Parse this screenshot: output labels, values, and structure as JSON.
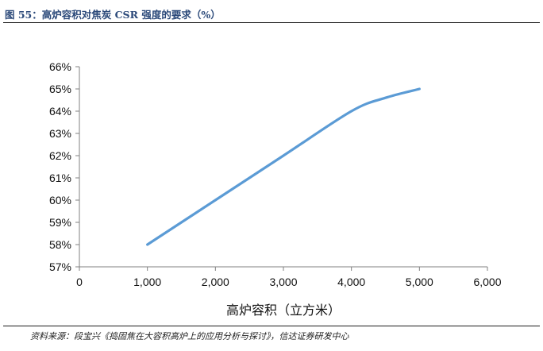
{
  "figure": {
    "title": "图 55：高炉容积对焦炭 CSR 强度的要求（%）",
    "source": "资料来源：段宝兴《捣固焦在大容积高炉上的应用分析与探讨》，信达证券研发中心"
  },
  "chart_data": {
    "type": "line",
    "title": "",
    "xlabel": "高炉容积（立方米）",
    "ylabel": "",
    "x": [
      1000,
      2000,
      3000,
      4000,
      4500,
      5000
    ],
    "series": [
      {
        "values": [
          58,
          60,
          62,
          64,
          64.6,
          65
        ]
      }
    ],
    "xlim": [
      0,
      6000
    ],
    "ylim": [
      57,
      66
    ],
    "x_ticks": [
      0,
      1000,
      2000,
      3000,
      4000,
      5000,
      6000
    ],
    "x_tick_labels": [
      "0",
      "1,000",
      "2,000",
      "3,000",
      "4,000",
      "5,000",
      "6,000"
    ],
    "y_ticks": [
      57,
      58,
      59,
      60,
      61,
      62,
      63,
      64,
      65,
      66
    ],
    "y_tick_labels": [
      "57%",
      "58%",
      "59%",
      "60%",
      "61%",
      "62%",
      "63%",
      "64%",
      "65%",
      "66%"
    ],
    "grid": false,
    "legend": "none",
    "colors": {
      "line": "#5b9bd5",
      "axis": "#808080"
    }
  }
}
